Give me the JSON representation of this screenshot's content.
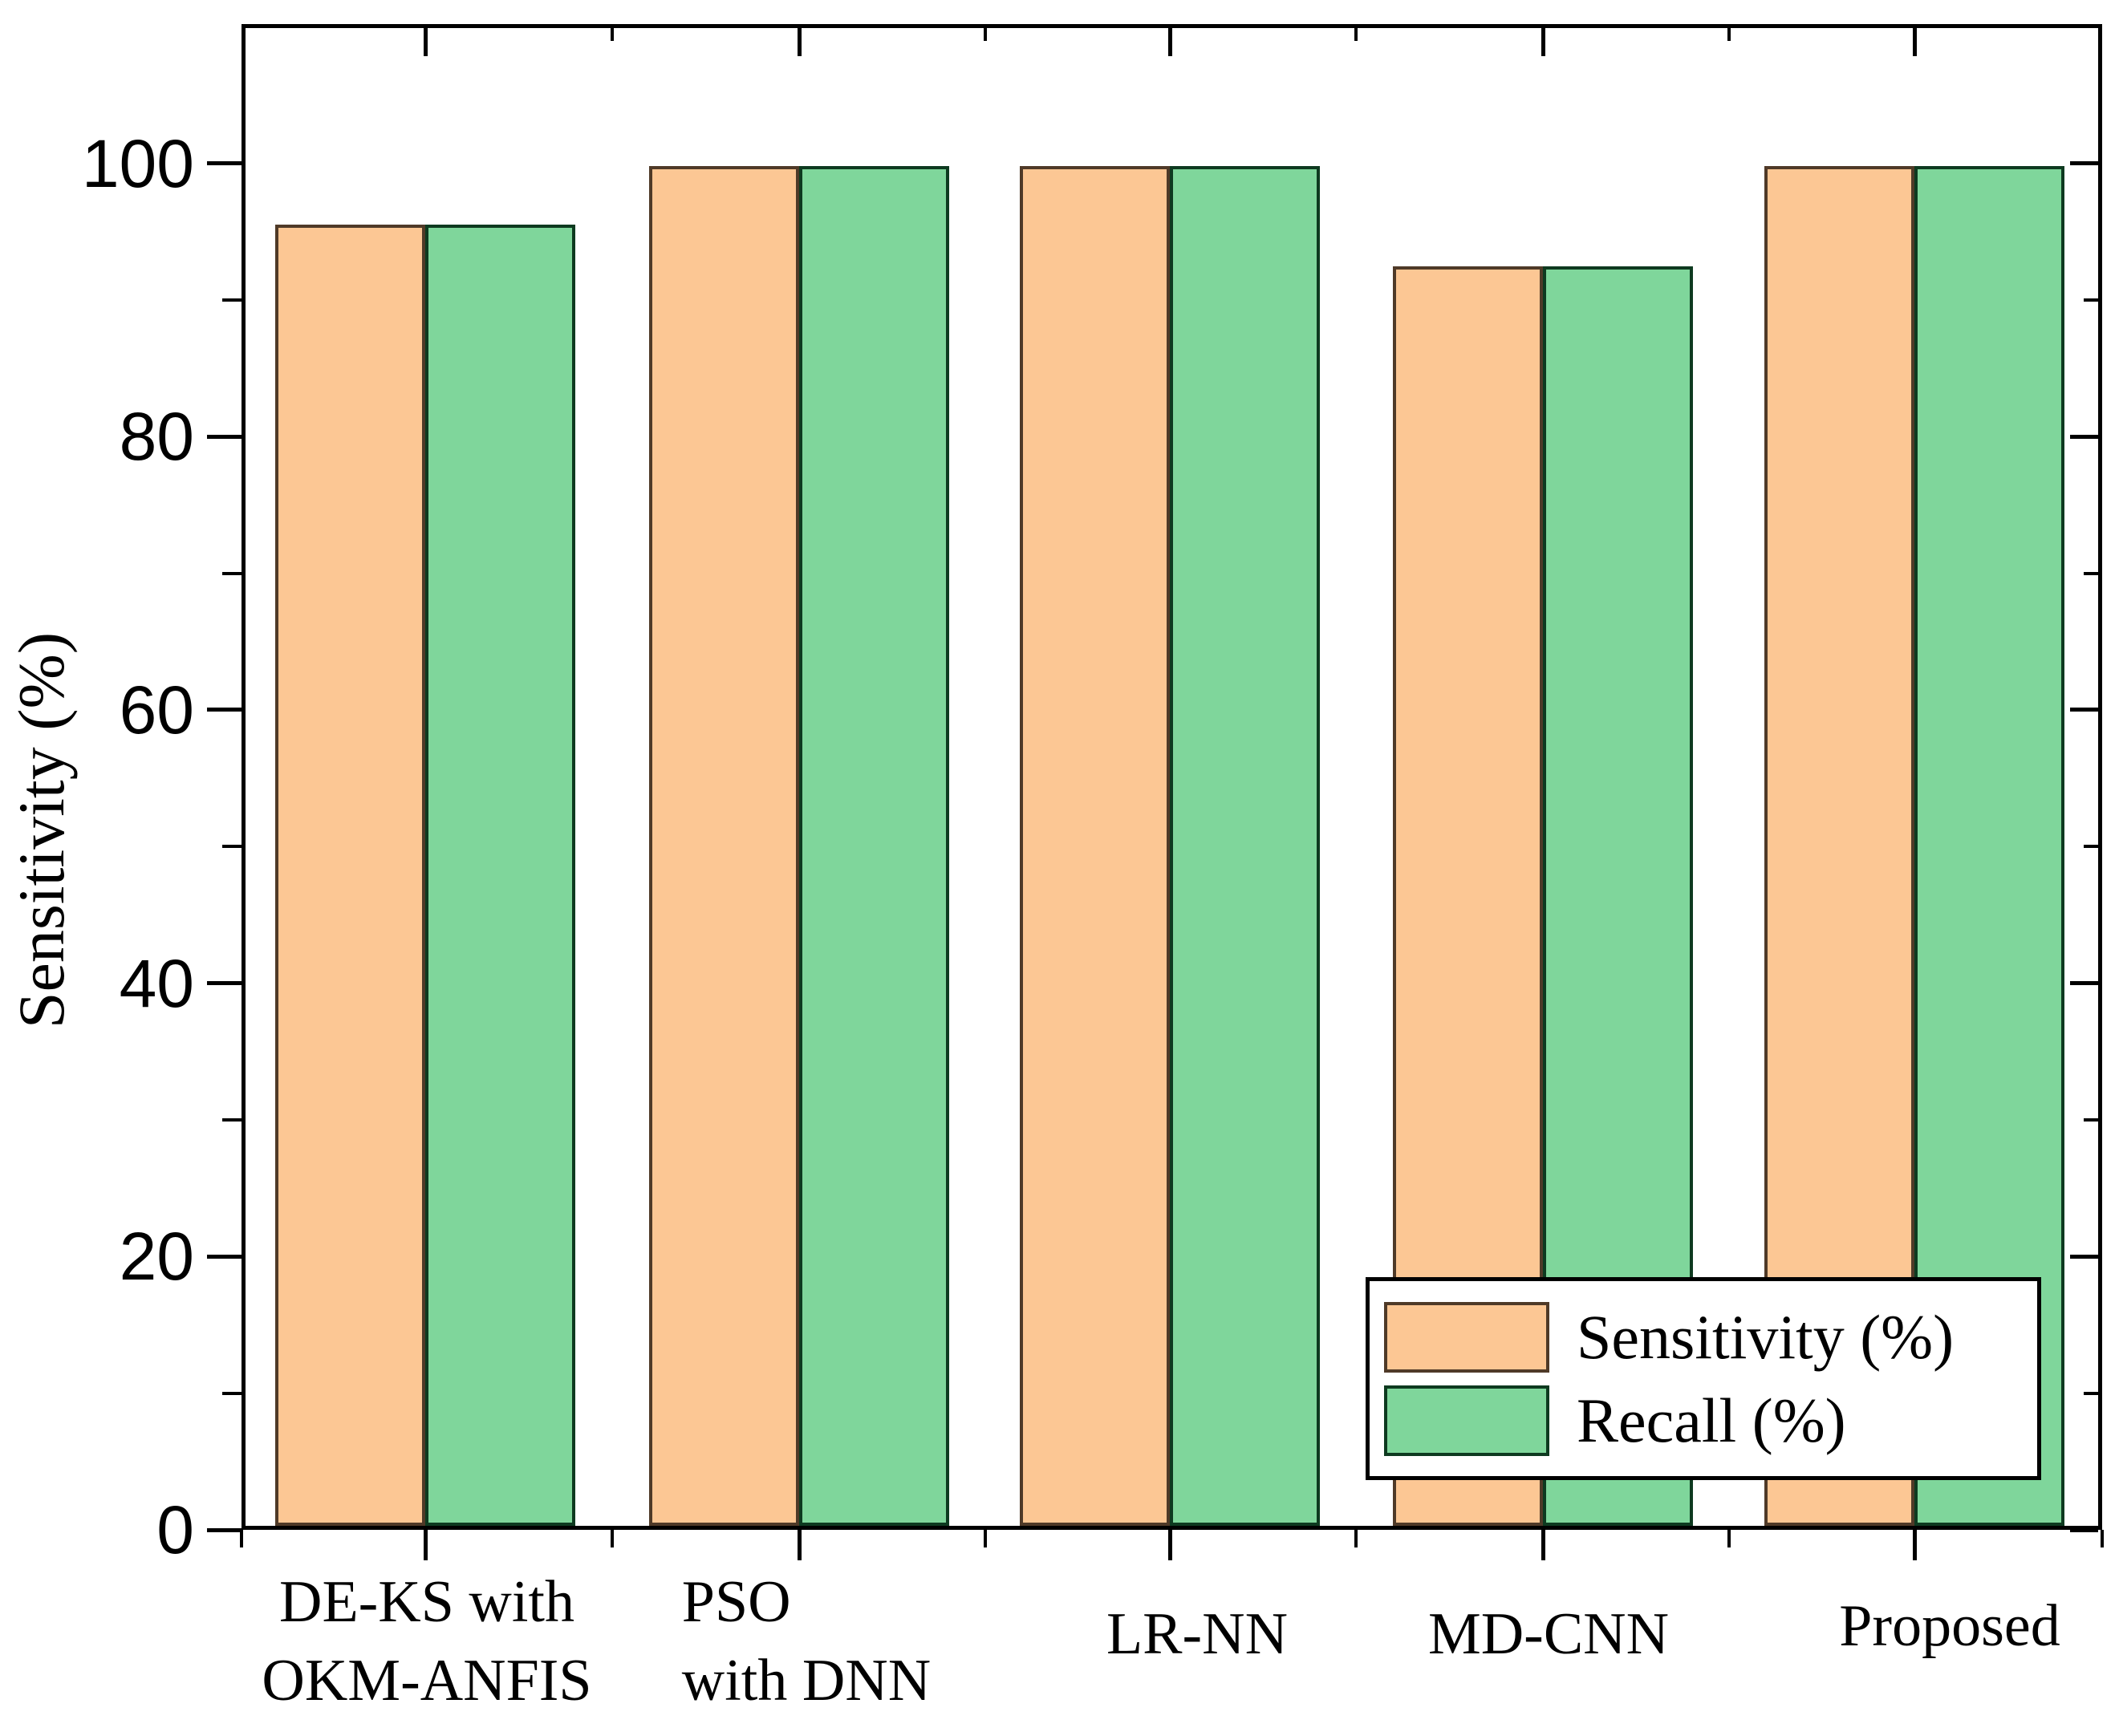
{
  "chart_data": {
    "type": "bar",
    "title": "",
    "xlabel": "",
    "ylabel": "Sensitivity (%)",
    "categories": [
      "DE-KS with OKM-ANFIS",
      "PSO with DNN",
      "LR-NN",
      "MD-CNN",
      "Proposed"
    ],
    "category_label_lines": [
      [
        "DE-KS with",
        "OKM-ANFIS"
      ],
      [
        "PSO",
        "with DNN"
      ],
      [
        "LR-NN"
      ],
      [
        "MD-CNN"
      ],
      [
        "Proposed"
      ]
    ],
    "series": [
      {
        "name": "Sensitivity (%)",
        "fill": "#FCC794",
        "edge": "#4F3A28",
        "values": [
          95.5,
          99.8,
          99.8,
          92.4,
          99.8
        ]
      },
      {
        "name": "Recall (%)",
        "fill": "#7FD69B",
        "edge": "#0E3A20",
        "values": [
          95.5,
          99.8,
          99.8,
          92.4,
          99.8
        ]
      }
    ],
    "ylim": [
      0,
      110
    ],
    "yticks": [
      0,
      20,
      40,
      60,
      80,
      100
    ],
    "yminorticks": [
      10,
      30,
      50,
      70,
      90
    ],
    "grid": false,
    "frame": "box",
    "legend": {
      "position": "bottom-right",
      "entries": [
        "Sensitivity (%)",
        "Recall (%)"
      ]
    },
    "axis_color": "#000000",
    "background": "#FFFFFF"
  }
}
